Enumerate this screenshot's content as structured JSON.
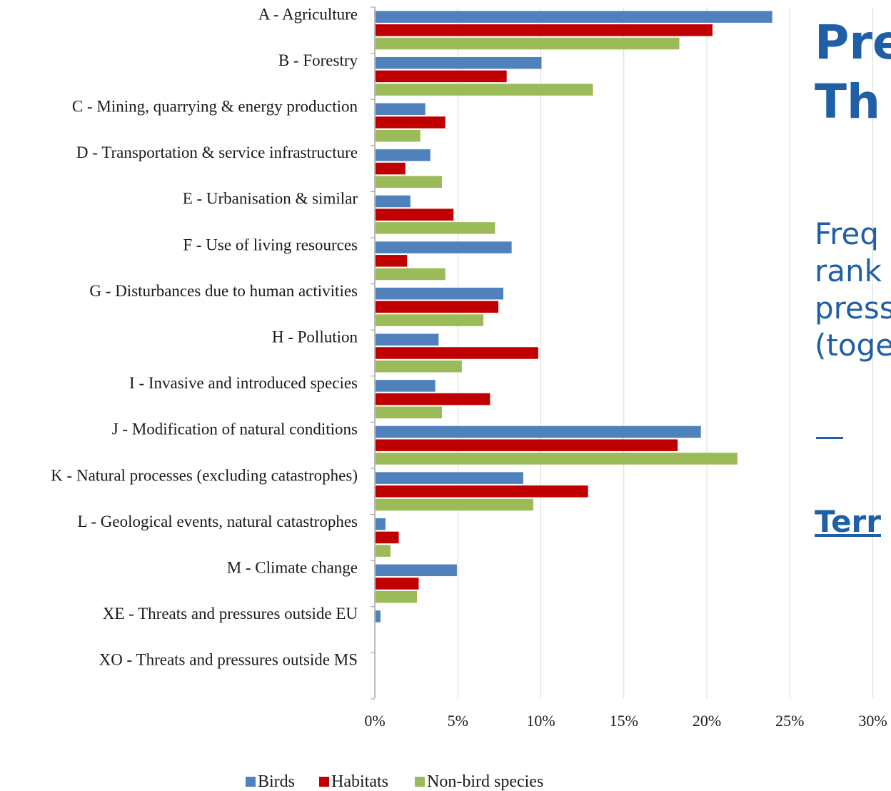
{
  "colors": {
    "birds": "#4f81bd",
    "habitats": "#c00000",
    "non_bird_species": "#9bbb59",
    "axis": "#a6a6a6",
    "grid": "#d9d9d9",
    "side_text": "#1f5fa6"
  },
  "side_panel": {
    "title_lines": [
      "Pre",
      "Th"
    ],
    "description_lines": [
      "Freq",
      "rank",
      "press",
      "(toge"
    ],
    "dash": "—",
    "link_text": "Terr"
  },
  "chart_data": {
    "type": "bar",
    "orientation": "horizontal",
    "categories": [
      "A - Agriculture",
      "B - Forestry",
      "C - Mining, quarrying & energy production",
      "D - Transportation & service infrastructure",
      "E - Urbanisation & similar",
      "F - Use of living resources",
      "G - Disturbances due to human activities",
      "H - Pollution",
      "I - Invasive and introduced species",
      "J - Modification of natural conditions",
      "K - Natural processes (excluding catastrophes)",
      "L - Geological events, natural catastrophes",
      "M - Climate change",
      "XE - Threats and pressures outside EU",
      "XO - Threats and pressures outside MS"
    ],
    "series": [
      {
        "name": "Birds",
        "values": [
          23.9,
          10.0,
          3.0,
          3.3,
          2.1,
          8.2,
          7.7,
          3.8,
          3.6,
          19.6,
          8.9,
          0.6,
          4.9,
          0.3,
          0
        ]
      },
      {
        "name": "Habitats",
        "values": [
          20.3,
          7.9,
          4.2,
          1.8,
          4.7,
          1.9,
          7.4,
          9.8,
          6.9,
          18.2,
          12.8,
          1.4,
          2.6,
          0,
          0
        ]
      },
      {
        "name": "Non-bird species",
        "values": [
          18.3,
          13.1,
          2.7,
          4.0,
          7.2,
          4.2,
          6.5,
          5.2,
          4.0,
          21.8,
          9.5,
          0.9,
          2.5,
          0,
          0
        ]
      }
    ],
    "xlim": [
      0,
      30
    ],
    "x_ticks": [
      "0%",
      "5%",
      "10%",
      "15%",
      "20%",
      "25%",
      "30%"
    ],
    "grid": "vertical",
    "legend": "bottom"
  }
}
